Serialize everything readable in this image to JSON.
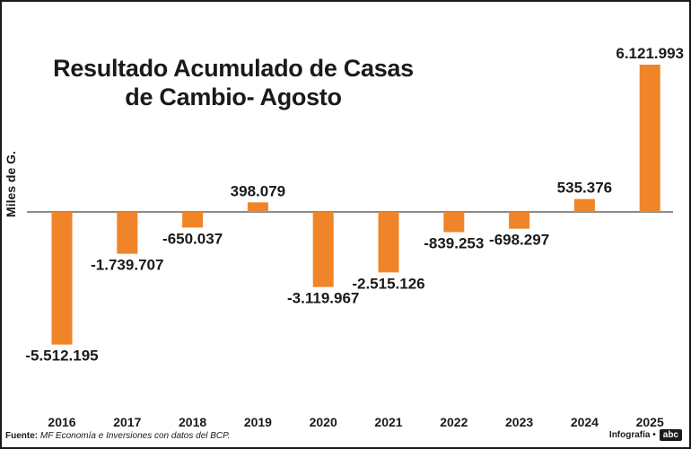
{
  "chart_data": {
    "type": "bar",
    "title_line1": "Resultado Acumulado de Casas",
    "title_line2": "de Cambio- Agosto",
    "ylabel": "Miles de G.",
    "categories": [
      "2016",
      "2017",
      "2018",
      "2019",
      "2020",
      "2021",
      "2022",
      "2023",
      "2024",
      "2025"
    ],
    "values": [
      -5512195,
      -1739707,
      -650037,
      398079,
      -3119967,
      -2515126,
      -839253,
      -698297,
      535376,
      6121993
    ],
    "labels": [
      "-5.512.195",
      "-1.739.707",
      "-650.037",
      "398.079",
      "-3.119.967",
      "-2.515.126",
      "-839.253",
      "-698.297",
      "535.376",
      "6.121.993"
    ],
    "ylim": [
      -6000000,
      7000000
    ],
    "bar_color": "#f08428",
    "axis_color": "#1a1a1a",
    "grid": false
  },
  "footer": {
    "source_label": "Fuente:",
    "source_text": "MF Economía e Inversiones con datos del BCP.",
    "credit": "Infografía •",
    "logo": "abc"
  }
}
